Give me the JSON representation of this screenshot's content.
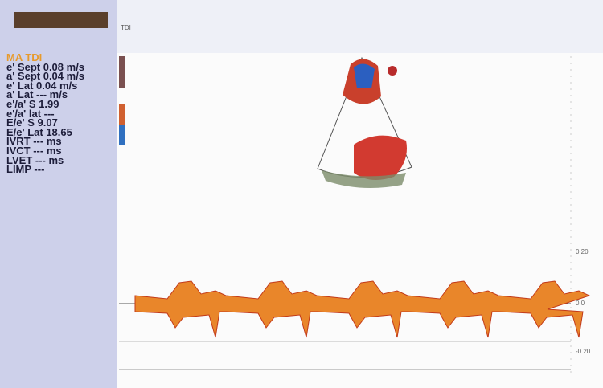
{
  "panel": {
    "mode": "MA TDI",
    "measurements": [
      "e' Sept 0.08 m/s",
      "a' Sept 0.04 m/s",
      "e' Lat 0.04 m/s",
      "a' Lat --- m/s",
      "e'/a' S 1.99",
      "e'/a' lat ---",
      "E/e' S 9.07",
      "E/e' Lat 18.65",
      "IVRT --- ms",
      "IVCT --- ms",
      "LVET --- ms",
      "LIMP ---"
    ]
  },
  "header": {
    "mode": "TDI"
  },
  "scale": {
    "labels": [
      "0.20",
      "0.0",
      "-0.20"
    ]
  }
}
